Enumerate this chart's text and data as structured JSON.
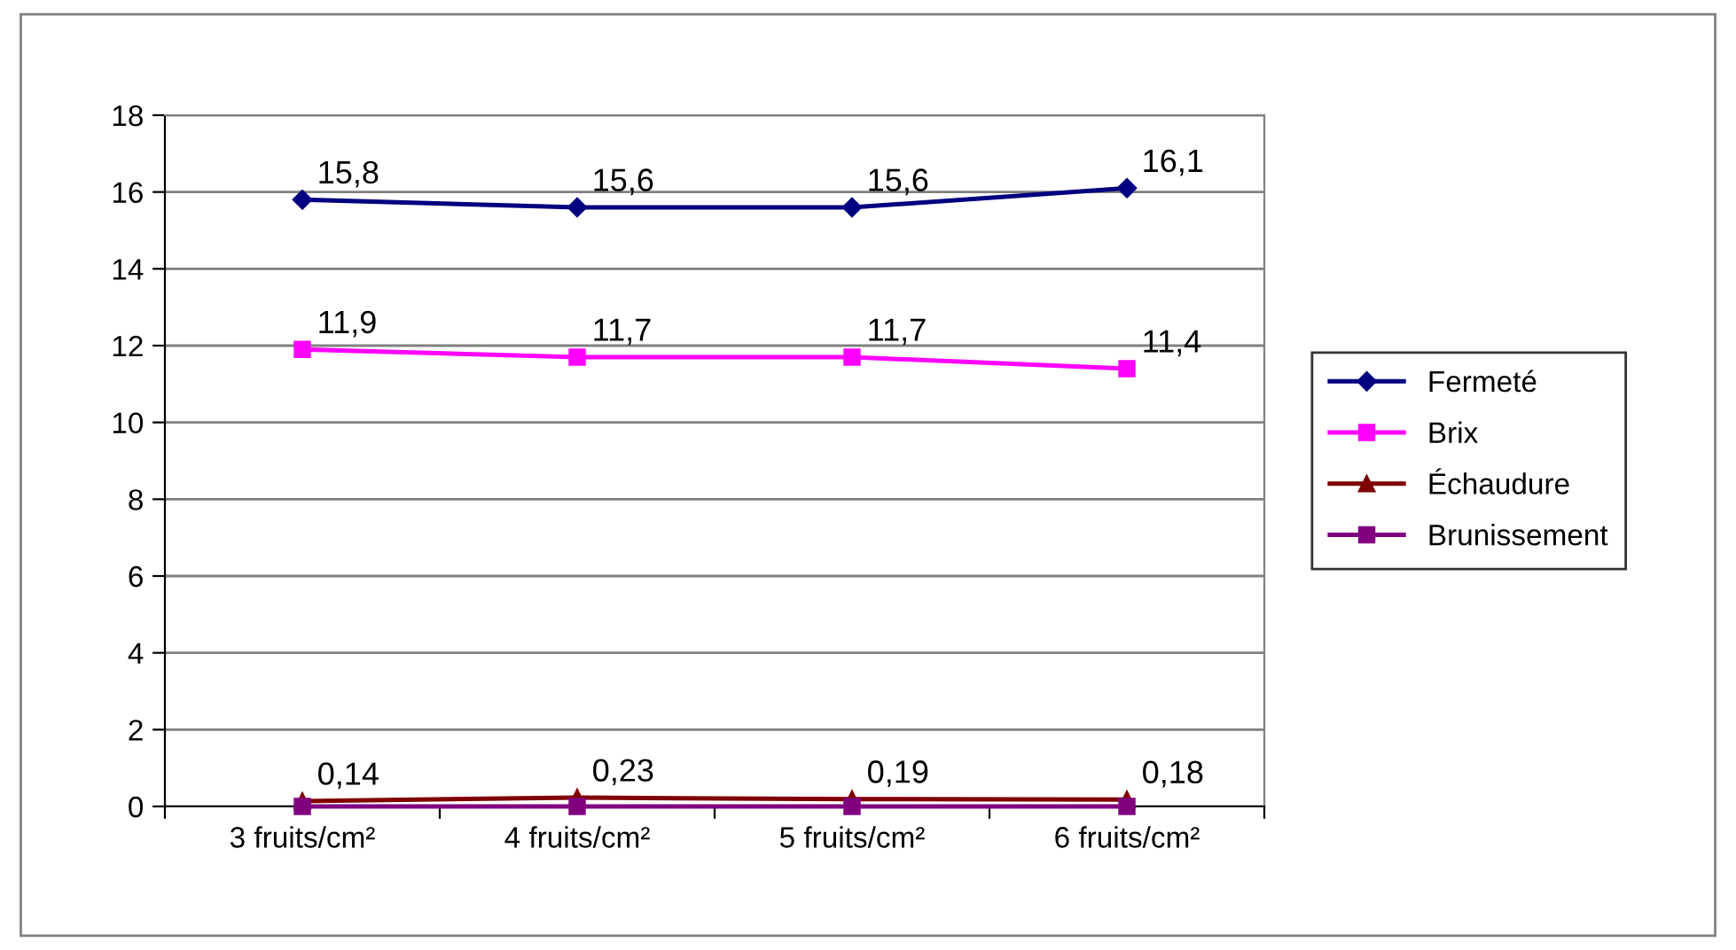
{
  "chart_data": {
    "type": "line",
    "categories": [
      "3 fruits/cm²",
      "4 fruits/cm²",
      "5 fruits/cm²",
      "6 fruits/cm²"
    ],
    "series": [
      {
        "name": "Fermeté",
        "color": "#000080",
        "marker": "diamond",
        "values": [
          15.8,
          15.6,
          15.6,
          16.1
        ],
        "value_labels": [
          "15,8",
          "15,6",
          "15,6",
          "16,1"
        ]
      },
      {
        "name": "Brix",
        "color": "#ff00ff",
        "marker": "square",
        "values": [
          11.9,
          11.7,
          11.7,
          11.4
        ],
        "value_labels": [
          "11,9",
          "11,7",
          "11,7",
          "11,4"
        ]
      },
      {
        "name": "Échaudure",
        "color": "#800000",
        "marker": "triangle",
        "values": [
          0.14,
          0.23,
          0.19,
          0.18
        ],
        "value_labels": [
          "0,14",
          "0,23",
          "0,19",
          "0,18"
        ]
      },
      {
        "name": "Brunissement",
        "color": "#800080",
        "marker": "square",
        "values": [
          0,
          0,
          0,
          0
        ]
      }
    ],
    "ylim": [
      0,
      18
    ],
    "yticks": [
      0,
      2,
      4,
      6,
      8,
      10,
      12,
      14,
      16,
      18
    ],
    "grid": "y",
    "legend": "right",
    "line_style": "solid"
  }
}
